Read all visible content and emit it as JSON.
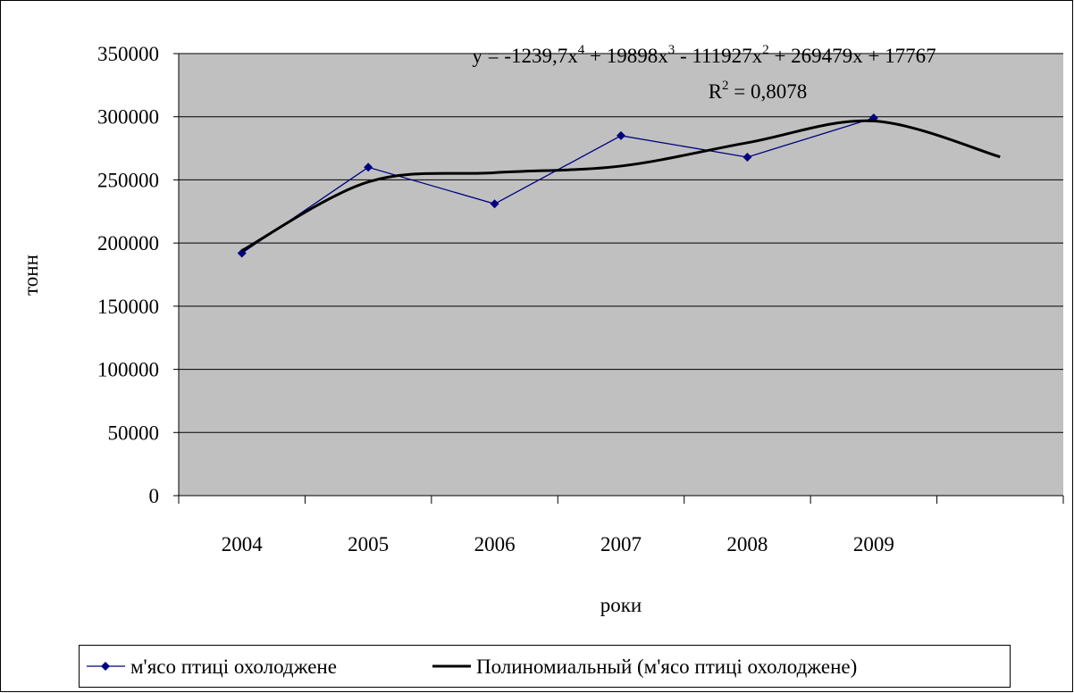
{
  "chart_data": {
    "type": "line",
    "categories": [
      "2004",
      "2005",
      "2006",
      "2007",
      "2008",
      "2009",
      null
    ],
    "series": [
      {
        "name": "м'ясо птиці охолоджене",
        "color": "#000080",
        "values": [
          192000,
          260000,
          231000,
          285000,
          268000,
          299000,
          null
        ]
      },
      {
        "name": "Полиномиальный (м'ясо птиці охолоджене)",
        "color": "#000000",
        "values": [
          193977,
          248366,
          255691,
          260960,
          279425,
          296586,
          268191
        ]
      }
    ],
    "equation": [
      "y = -1239,7x",
      "4",
      " + 19898x",
      "3",
      " - 111927x",
      "2",
      " + 269479x + 17767"
    ],
    "r_squared": [
      "R",
      "2",
      " = 0,8078"
    ],
    "x_label": "роки",
    "y_label": "тонн",
    "ylim": [
      0,
      350000
    ],
    "yticks": [
      0,
      50000,
      100000,
      150000,
      200000,
      250000,
      300000,
      350000
    ],
    "grid": true,
    "legend": "bottom",
    "plot_color": "#c0c0c0"
  }
}
